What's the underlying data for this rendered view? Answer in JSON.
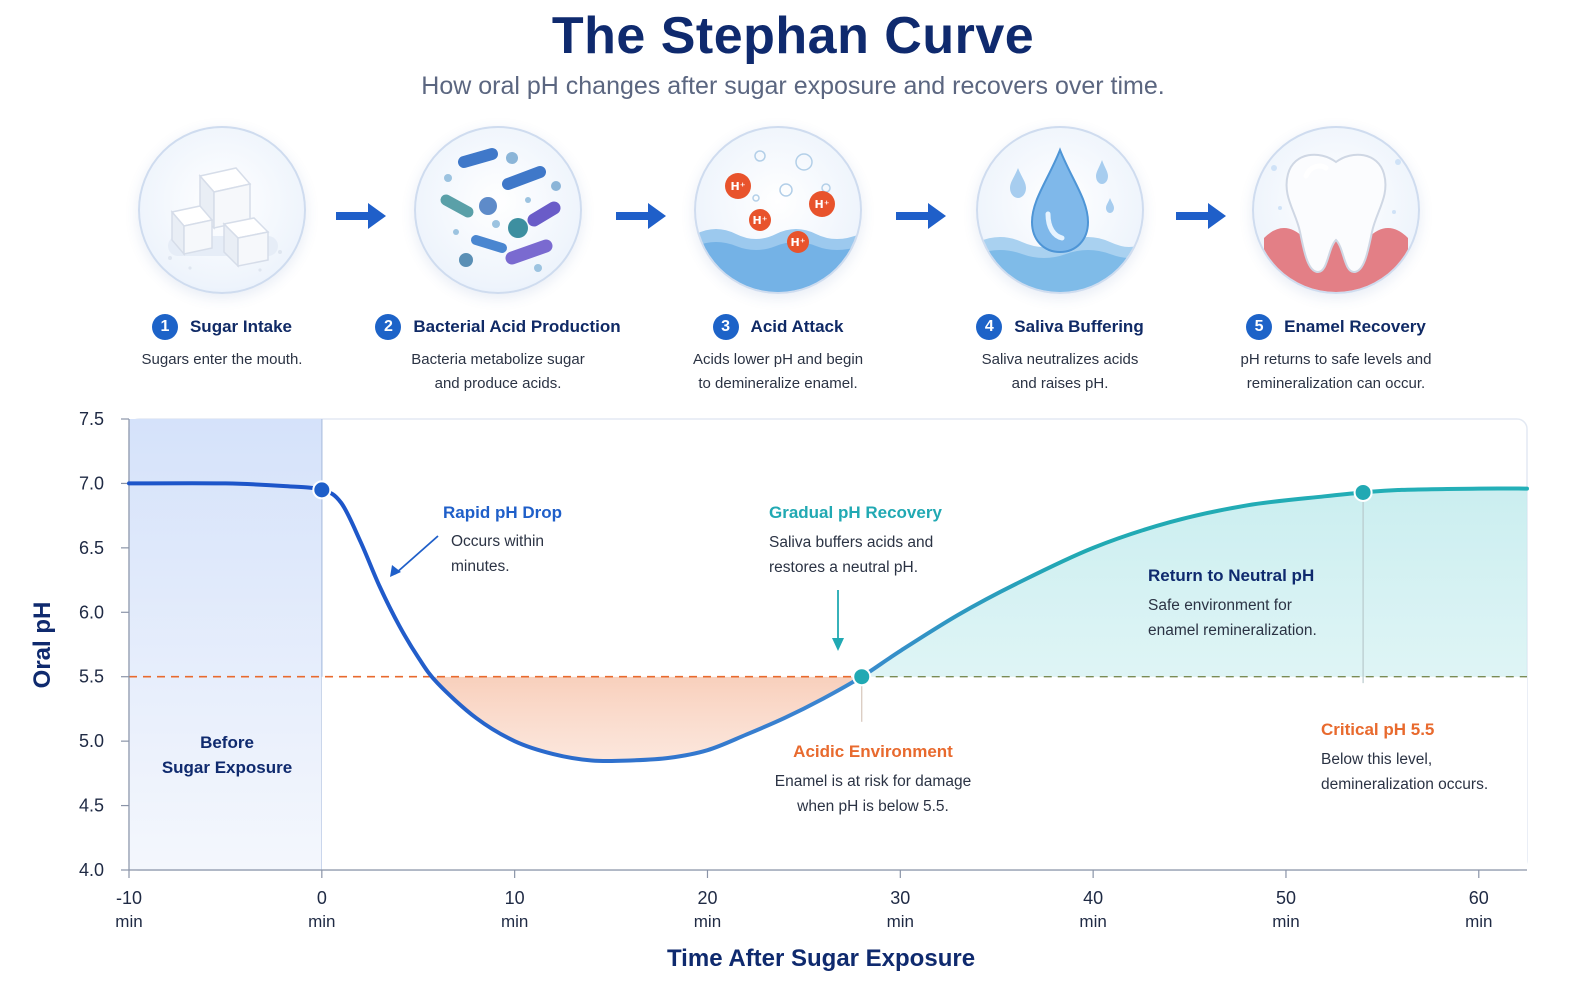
{
  "header": {
    "title": "The Stephan Curve",
    "subtitle": "How oral pH changes after sugar exposure and recovers over time."
  },
  "steps": [
    {
      "num": "1",
      "title": "Sugar Intake",
      "desc_lines": [
        "Sugars enter the mouth."
      ],
      "icon": "sugar-cubes-icon"
    },
    {
      "num": "2",
      "title": "Bacterial Acid Production",
      "desc_lines": [
        "Bacteria metabolize sugar",
        "and produce acids."
      ],
      "icon": "bacteria-icon"
    },
    {
      "num": "3",
      "title": "Acid Attack",
      "desc_lines": [
        "Acids lower pH and begin",
        "to demineralize enamel."
      ],
      "icon": "acid-ions-icon"
    },
    {
      "num": "4",
      "title": "Saliva Buffering",
      "desc_lines": [
        "Saliva neutralizes acids",
        "and raises pH."
      ],
      "icon": "water-drop-icon"
    },
    {
      "num": "5",
      "title": "Enamel Recovery",
      "desc_lines": [
        "pH returns to safe levels and",
        "remineralization can occur."
      ],
      "icon": "tooth-icon"
    }
  ],
  "colors": {
    "navy": "#0f2a6e",
    "blue": "#1f5fc9",
    "teal": "#21a9b3",
    "orange": "#e86a2e",
    "danger_fill": "#fbd8c8",
    "safe_fill": "#cdeff0",
    "before_fill": "#dbe6fa"
  },
  "chart_data": {
    "type": "line",
    "xlabel": "Time After Sugar Exposure",
    "ylabel": "Oral pH",
    "xlim": [
      -10,
      62.5
    ],
    "ylim": [
      4.0,
      7.5
    ],
    "x_ticks": [
      -10,
      0,
      10,
      20,
      30,
      40,
      50,
      60
    ],
    "x_tick_unit": "min",
    "y_ticks": [
      "4.0",
      "4.5",
      "5.0",
      "5.5",
      "6.0",
      "6.5",
      "7.0",
      "7.5"
    ],
    "critical_ph": 5.5,
    "series": [
      {
        "x": [
          -10,
          -5,
          -2,
          0,
          1,
          2,
          3,
          4,
          5,
          6,
          8,
          10,
          12,
          14,
          16,
          18,
          20,
          22,
          24,
          26,
          28,
          30,
          33,
          36,
          40,
          44,
          48,
          52,
          54,
          56,
          60,
          62.5
        ],
        "y": [
          7.0,
          7.0,
          6.98,
          6.95,
          6.85,
          6.55,
          6.2,
          5.9,
          5.65,
          5.45,
          5.18,
          5.0,
          4.9,
          4.85,
          4.85,
          4.87,
          4.93,
          5.05,
          5.18,
          5.33,
          5.5,
          5.7,
          5.98,
          6.22,
          6.5,
          6.7,
          6.83,
          6.9,
          6.93,
          6.95,
          6.96,
          6.96
        ]
      }
    ],
    "markers": [
      {
        "x": 0,
        "y": 6.95
      },
      {
        "x": 28,
        "y": 5.5
      },
      {
        "x": 54,
        "y": 6.93
      }
    ],
    "regions": {
      "before": {
        "label_lines": [
          "Before",
          "Sugar Exposure"
        ],
        "x_range": [
          -10,
          0
        ]
      }
    },
    "annotations": {
      "rapid_drop": {
        "title": "Rapid pH Drop",
        "lines": [
          "Occurs within",
          "minutes."
        ]
      },
      "gradual_recovery": {
        "title": "Gradual pH Recovery",
        "lines": [
          "Saliva buffers acids and",
          "restores a neutral pH."
        ]
      },
      "return_neutral": {
        "title": "Return to Neutral pH",
        "lines": [
          "Safe environment for",
          "enamel remineralization."
        ]
      },
      "acidic_env": {
        "title": "Acidic Environment",
        "lines": [
          "Enamel is at risk for damage",
          "when pH is below 5.5."
        ]
      },
      "critical": {
        "title": "Critical pH 5.5",
        "lines": [
          "Below this level,",
          "demineralization occurs."
        ]
      }
    },
    "grid": false
  }
}
